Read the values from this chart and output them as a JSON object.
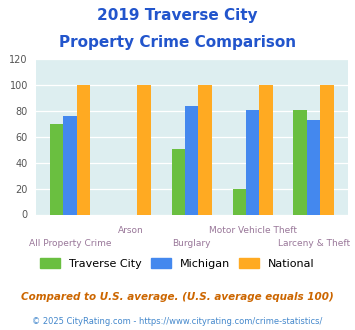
{
  "title_line1": "2019 Traverse City",
  "title_line2": "Property Crime Comparison",
  "categories": [
    "All Property Crime",
    "Arson",
    "Burglary",
    "Motor Vehicle Theft",
    "Larceny & Theft"
  ],
  "traverse_city": [
    70,
    0,
    51,
    20,
    81
  ],
  "michigan": [
    76,
    0,
    84,
    81,
    73
  ],
  "national": [
    100,
    100,
    100,
    100,
    100
  ],
  "color_tc": "#6abf40",
  "color_mi": "#4488ee",
  "color_nat": "#ffaa22",
  "ylim": [
    0,
    120
  ],
  "yticks": [
    0,
    20,
    40,
    60,
    80,
    100,
    120
  ],
  "legend_labels": [
    "Traverse City",
    "Michigan",
    "National"
  ],
  "footnote1": "Compared to U.S. average. (U.S. average equals 100)",
  "footnote2": "© 2025 CityRating.com - https://www.cityrating.com/crime-statistics/",
  "title_color": "#2255cc",
  "footnote1_color": "#cc6600",
  "footnote2_color": "#4488cc",
  "xlabel_color": "#997799",
  "background_color": "#ddeef0",
  "bar_width": 0.22
}
